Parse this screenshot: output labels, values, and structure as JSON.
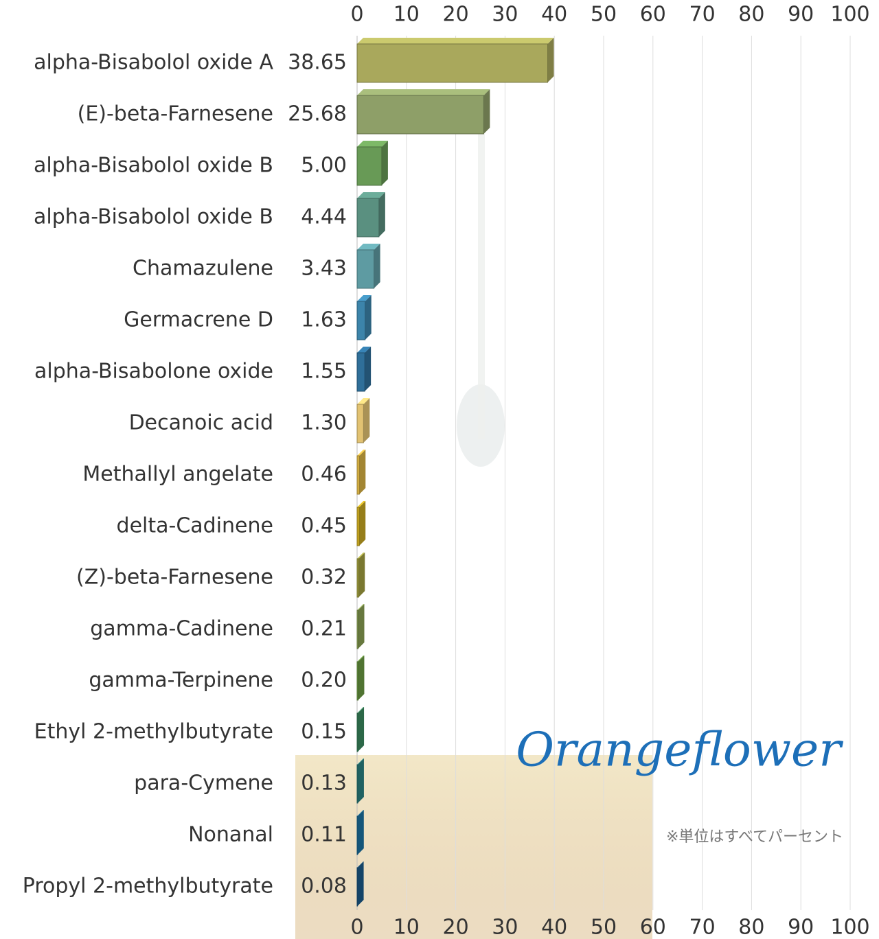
{
  "chart_data": {
    "type": "bar",
    "orientation": "horizontal",
    "categories": [
      "alpha-Bisabolol oxide A",
      "(E)-beta-Farnesene",
      "alpha-Bisabolol oxide B",
      "alpha-Bisabolol oxide B",
      "Chamazulene",
      "Germacrene D",
      "alpha-Bisabolone oxide",
      "Decanoic acid",
      "Methallyl angelate",
      "delta-Cadinene",
      "(Z)-beta-Farnesene",
      "gamma-Cadinene",
      "gamma-Terpinene",
      "Ethyl 2-methylbutyrate",
      "para-Cymene",
      "Nonanal",
      "Propyl 2-methylbutyrate"
    ],
    "values": [
      38.65,
      25.68,
      5,
      4.44,
      3.43,
      1.63,
      1.55,
      1.3,
      0.46,
      0.45,
      0.32,
      0.21,
      0.2,
      0.15,
      0.13,
      0.11,
      0.08
    ],
    "value_labels": [
      "38.65",
      "25.68",
      "5.00",
      "4.44",
      "3.43",
      "1.63",
      "1.55",
      "1.30",
      "0.46",
      "0.45",
      "0.32",
      "0.21",
      "0.20",
      "0.15",
      "0.13",
      "0.11",
      "0.08"
    ],
    "colors": [
      "#a9a85c",
      "#8e9f68",
      "#689a56",
      "#5a9080",
      "#5e9ba2",
      "#3c84aa",
      "#2f6f99",
      "#e2c272",
      "#d9b244",
      "#c8a822",
      "#a2a040",
      "#89a052",
      "#6b9a42",
      "#3b8a60",
      "#2a8282",
      "#1a72a2",
      "#1b5b8a"
    ],
    "xlim": [
      0,
      100
    ],
    "xticks": [
      0,
      10,
      20,
      30,
      40,
      50,
      60,
      70,
      80,
      90,
      100
    ],
    "grid": true,
    "logo": "Orangeflower",
    "note": "※単位はすべてパーセント"
  }
}
